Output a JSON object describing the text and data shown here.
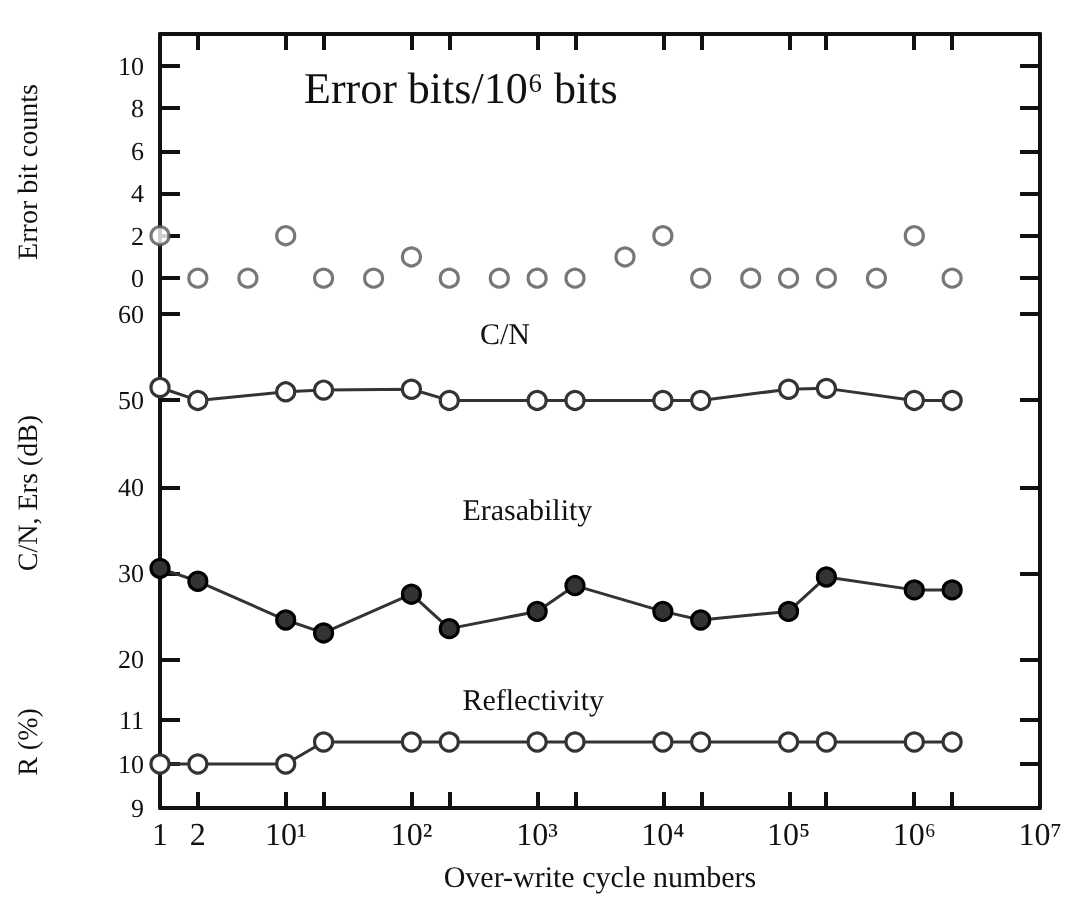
{
  "chart_data": [
    {
      "type": "scatter",
      "ylabel": "Error bit counts",
      "x": [
        1,
        2,
        5,
        10,
        20,
        50,
        100,
        200,
        500,
        1000,
        2000,
        5000,
        10000,
        20000,
        50000,
        100000,
        200000,
        500000,
        1000000,
        2000000
      ],
      "xlim": [
        1,
        10000000
      ],
      "ylim": [
        -1.5,
        11.5
      ],
      "yticks": [
        0,
        2,
        4,
        6,
        8,
        10
      ],
      "xticks": [
        {
          "value": 1,
          "label": null
        },
        {
          "value": 2,
          "label": null
        },
        {
          "value": 10,
          "label": null
        },
        {
          "value": 20,
          "label": null
        },
        {
          "value": 100,
          "label": null
        },
        {
          "value": 200,
          "label": null
        },
        {
          "value": 1000,
          "label": null
        },
        {
          "value": 2000,
          "label": null
        },
        {
          "value": 10000,
          "label": null
        },
        {
          "value": 20000,
          "label": null
        },
        {
          "value": 100000,
          "label": null
        },
        {
          "value": 200000,
          "label": null
        },
        {
          "value": 1000000,
          "label": null
        },
        {
          "value": 2000000,
          "label": null
        },
        {
          "value": 10000000,
          "label": null
        }
      ],
      "log": "x",
      "tick_labels": "y",
      "marker": "circle",
      "legend": false,
      "grid": false,
      "series": [
        {
          "name": "Error bits/10⁶ bits",
          "color": "#555555",
          "values": [
            2,
            0,
            0,
            2,
            0,
            0,
            1,
            0,
            0,
            0,
            0,
            1,
            2,
            0,
            0,
            0,
            0,
            0,
            2,
            0
          ]
        }
      ]
    },
    {
      "type": "line",
      "ylabel": "C/N, Ers (dB)",
      "x": [
        1,
        2,
        10,
        20,
        100,
        200,
        1000,
        2000,
        10000,
        20000,
        100000,
        200000,
        1000000,
        2000000
      ],
      "xlim": [
        1,
        10000000
      ],
      "ylim": [
        18,
        60.5
      ],
      "yticks": [
        20,
        30,
        40,
        50,
        60
      ],
      "log": "x",
      "tick_labels": "y",
      "marker": "circle",
      "legend": false,
      "grid": false,
      "series": [
        {
          "name": "C/N",
          "color": "#333333",
          "values": [
            51.5,
            50,
            51,
            51.2,
            51.3,
            50,
            50,
            50,
            50,
            50,
            51.3,
            51.4,
            50,
            50
          ]
        },
        {
          "name": "Erasability",
          "color": "#333333",
          "values": [
            30.5,
            29,
            24.5,
            23,
            27.5,
            23.5,
            25.5,
            28.5,
            25.5,
            24.5,
            25.5,
            29.5,
            28,
            28
          ]
        }
      ]
    },
    {
      "type": "line",
      "ylabel": "R (%)",
      "xlabel": "Over-write cycle numbers",
      "x": [
        1,
        2,
        10,
        20,
        100,
        200,
        1000,
        2000,
        10000,
        20000,
        100000,
        200000,
        1000000,
        2000000
      ],
      "xlim": [
        1,
        10000000
      ],
      "ylim": [
        9,
        12
      ],
      "yticks": [
        9,
        10,
        11
      ],
      "xticks": [
        1,
        2,
        {
          "value": 10,
          "label": "10¹"
        },
        {
          "value": 20,
          "label": null
        },
        {
          "value": 100,
          "label": "10²"
        },
        {
          "value": 200,
          "label": null
        },
        {
          "value": 1000,
          "label": "10³"
        },
        {
          "value": 2000,
          "label": null
        },
        {
          "value": 10000,
          "label": "10⁴"
        },
        {
          "value": 20000,
          "label": null
        },
        {
          "value": 100000,
          "label": "10⁵"
        },
        {
          "value": 200000,
          "label": null
        },
        {
          "value": 1000000,
          "label": "10⁶"
        },
        {
          "value": 2000000,
          "label": null
        },
        {
          "value": 10000000,
          "label": "10⁷"
        }
      ],
      "log": "x",
      "marker": "circle",
      "legend": false,
      "grid": false,
      "series": [
        {
          "name": "Reflectivity",
          "color": "#333333",
          "values": [
            10,
            10,
            10,
            10.5,
            10.5,
            10.5,
            10.5,
            10.5,
            10.5,
            10.5,
            10.5,
            10.5,
            10.5,
            10.5
          ]
        }
      ]
    }
  ]
}
